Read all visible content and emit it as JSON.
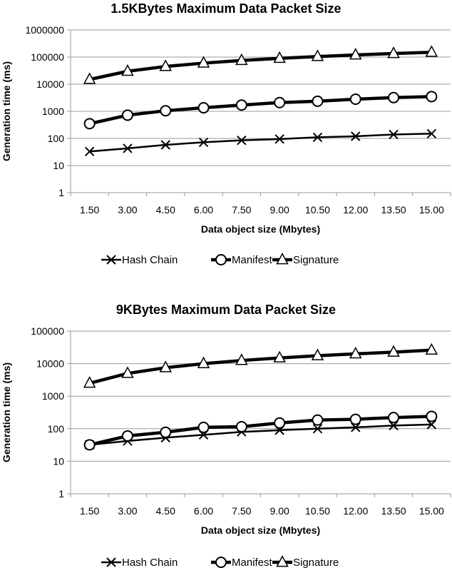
{
  "chart_data": [
    {
      "type": "line",
      "title": "1.5KBytes Maximum Data Packet Size",
      "xlabel": "Data object size (Mbytes)",
      "ylabel": "Generation time (ms)",
      "categories": [
        "1.50",
        "3.00",
        "4.50",
        "6.00",
        "7.50",
        "9.00",
        "10.50",
        "12.00",
        "13.50",
        "15.00"
      ],
      "y_scale": "log",
      "ylim": [
        1,
        1000000
      ],
      "y_ticks": [
        "1",
        "10",
        "100",
        "1000",
        "10000",
        "100000",
        "1000000"
      ],
      "grid": true,
      "legend": "bottom",
      "series": [
        {
          "name": "Hash Chain",
          "marker": "x",
          "values": [
            33,
            43,
            58,
            72,
            85,
            95,
            110,
            120,
            140,
            150
          ]
        },
        {
          "name": "Manifest",
          "marker": "circle",
          "values": [
            350,
            720,
            1050,
            1350,
            1700,
            2100,
            2350,
            2800,
            3200,
            3500
          ]
        },
        {
          "name": "Signature",
          "marker": "triangle",
          "values": [
            15000,
            30000,
            45000,
            60000,
            75000,
            90000,
            105000,
            120000,
            135000,
            150000
          ]
        }
      ]
    },
    {
      "type": "line",
      "title": "9KBytes Maximum Data Packet Size",
      "xlabel": "Data object size (Mbytes)",
      "ylabel": "Generation time (ms)",
      "categories": [
        "1.50",
        "3.00",
        "4.50",
        "6.00",
        "7.50",
        "9.00",
        "10.50",
        "12.00",
        "13.50",
        "15.00"
      ],
      "y_scale": "log",
      "ylim": [
        1,
        100000
      ],
      "y_ticks": [
        "1",
        "10",
        "100",
        "1000",
        "10000",
        "100000"
      ],
      "grid": true,
      "legend": "bottom",
      "series": [
        {
          "name": "Hash Chain",
          "marker": "x",
          "values": [
            32,
            42,
            53,
            65,
            80,
            90,
            100,
            110,
            125,
            135
          ]
        },
        {
          "name": "Manifest",
          "marker": "circle",
          "values": [
            32,
            60,
            78,
            110,
            115,
            150,
            185,
            195,
            220,
            240
          ]
        },
        {
          "name": "Signature",
          "marker": "triangle",
          "values": [
            2500,
            5000,
            7500,
            10000,
            12500,
            15000,
            17500,
            20000,
            22500,
            26000
          ]
        }
      ]
    }
  ]
}
